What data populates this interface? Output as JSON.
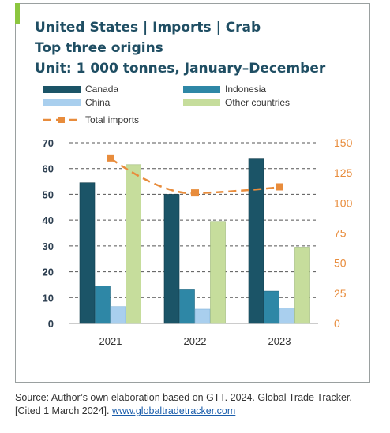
{
  "figure": {
    "title_line1": "United States | Imports | Crab",
    "title_line2": "Top three origins",
    "title_line3": "Unit: 1 000 tonnes, January–December",
    "source_text": "Source: Author’s own elaboration based on GTT. 2024. Global Trade Tracker. [Cited 1 March 2024]. ",
    "source_link": "www.globaltradetracker.com"
  },
  "colors": {
    "canada": "#1b5467",
    "indonesia": "#2e87a6",
    "china": "#a9cfee",
    "other": "#c6dd9c",
    "total": "#e88c3c",
    "left_axis": "#2c3e50",
    "right_axis": "#e88c3c"
  },
  "chart_data": {
    "type": "bar",
    "title": "United States | Imports | Crab",
    "categories": [
      "2021",
      "2022",
      "2023"
    ],
    "series": [
      {
        "name": "Canada",
        "axis": "left",
        "values": [
          54.5,
          50.0,
          64.0
        ]
      },
      {
        "name": "Indonesia",
        "axis": "left",
        "values": [
          14.5,
          13.0,
          12.5
        ]
      },
      {
        "name": "China",
        "axis": "left",
        "values": [
          6.5,
          5.5,
          6.0
        ]
      },
      {
        "name": "Other countries",
        "axis": "left",
        "values": [
          61.5,
          39.5,
          29.5
        ]
      },
      {
        "name": "Total imports",
        "axis": "right",
        "type": "line",
        "style": "dashed",
        "values": [
          137,
          108,
          113
        ]
      }
    ],
    "y_left": {
      "ticks": [
        0,
        10,
        20,
        30,
        40,
        50,
        60,
        70
      ],
      "range": [
        0,
        70
      ]
    },
    "y_right": {
      "ticks": [
        0,
        25,
        50,
        75,
        100,
        125,
        150
      ],
      "range": [
        0,
        150
      ]
    },
    "grid": true,
    "legend_placement": "top"
  }
}
